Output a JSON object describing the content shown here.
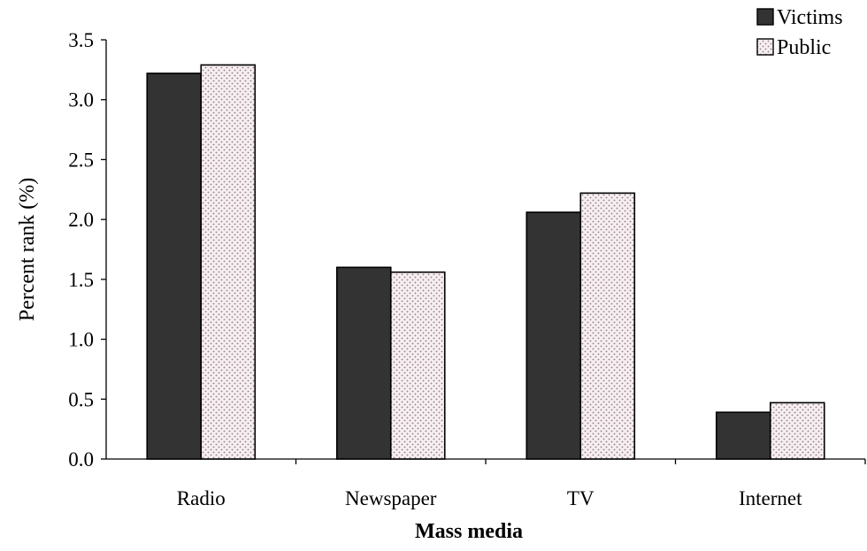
{
  "chart_data": {
    "type": "bar",
    "title": "",
    "xlabel": "Mass media",
    "ylabel": "Percent rank (%)",
    "categories": [
      "Radio",
      "Newspaper",
      "TV",
      "Internet"
    ],
    "series": [
      {
        "name": "Victims",
        "values": [
          3.22,
          1.6,
          2.06,
          0.39
        ],
        "color": "#333333",
        "pattern": "solid"
      },
      {
        "name": "Public",
        "values": [
          3.29,
          1.56,
          2.22,
          0.47
        ],
        "color": "#f7eef2",
        "pattern": "dotted"
      }
    ],
    "ylim": [
      0,
      3.5
    ],
    "yticks": [
      "0.0",
      "0.5",
      "1.0",
      "1.5",
      "2.0",
      "2.5",
      "3.0",
      "3.5"
    ],
    "grid": false,
    "legend_position": "top-right"
  }
}
